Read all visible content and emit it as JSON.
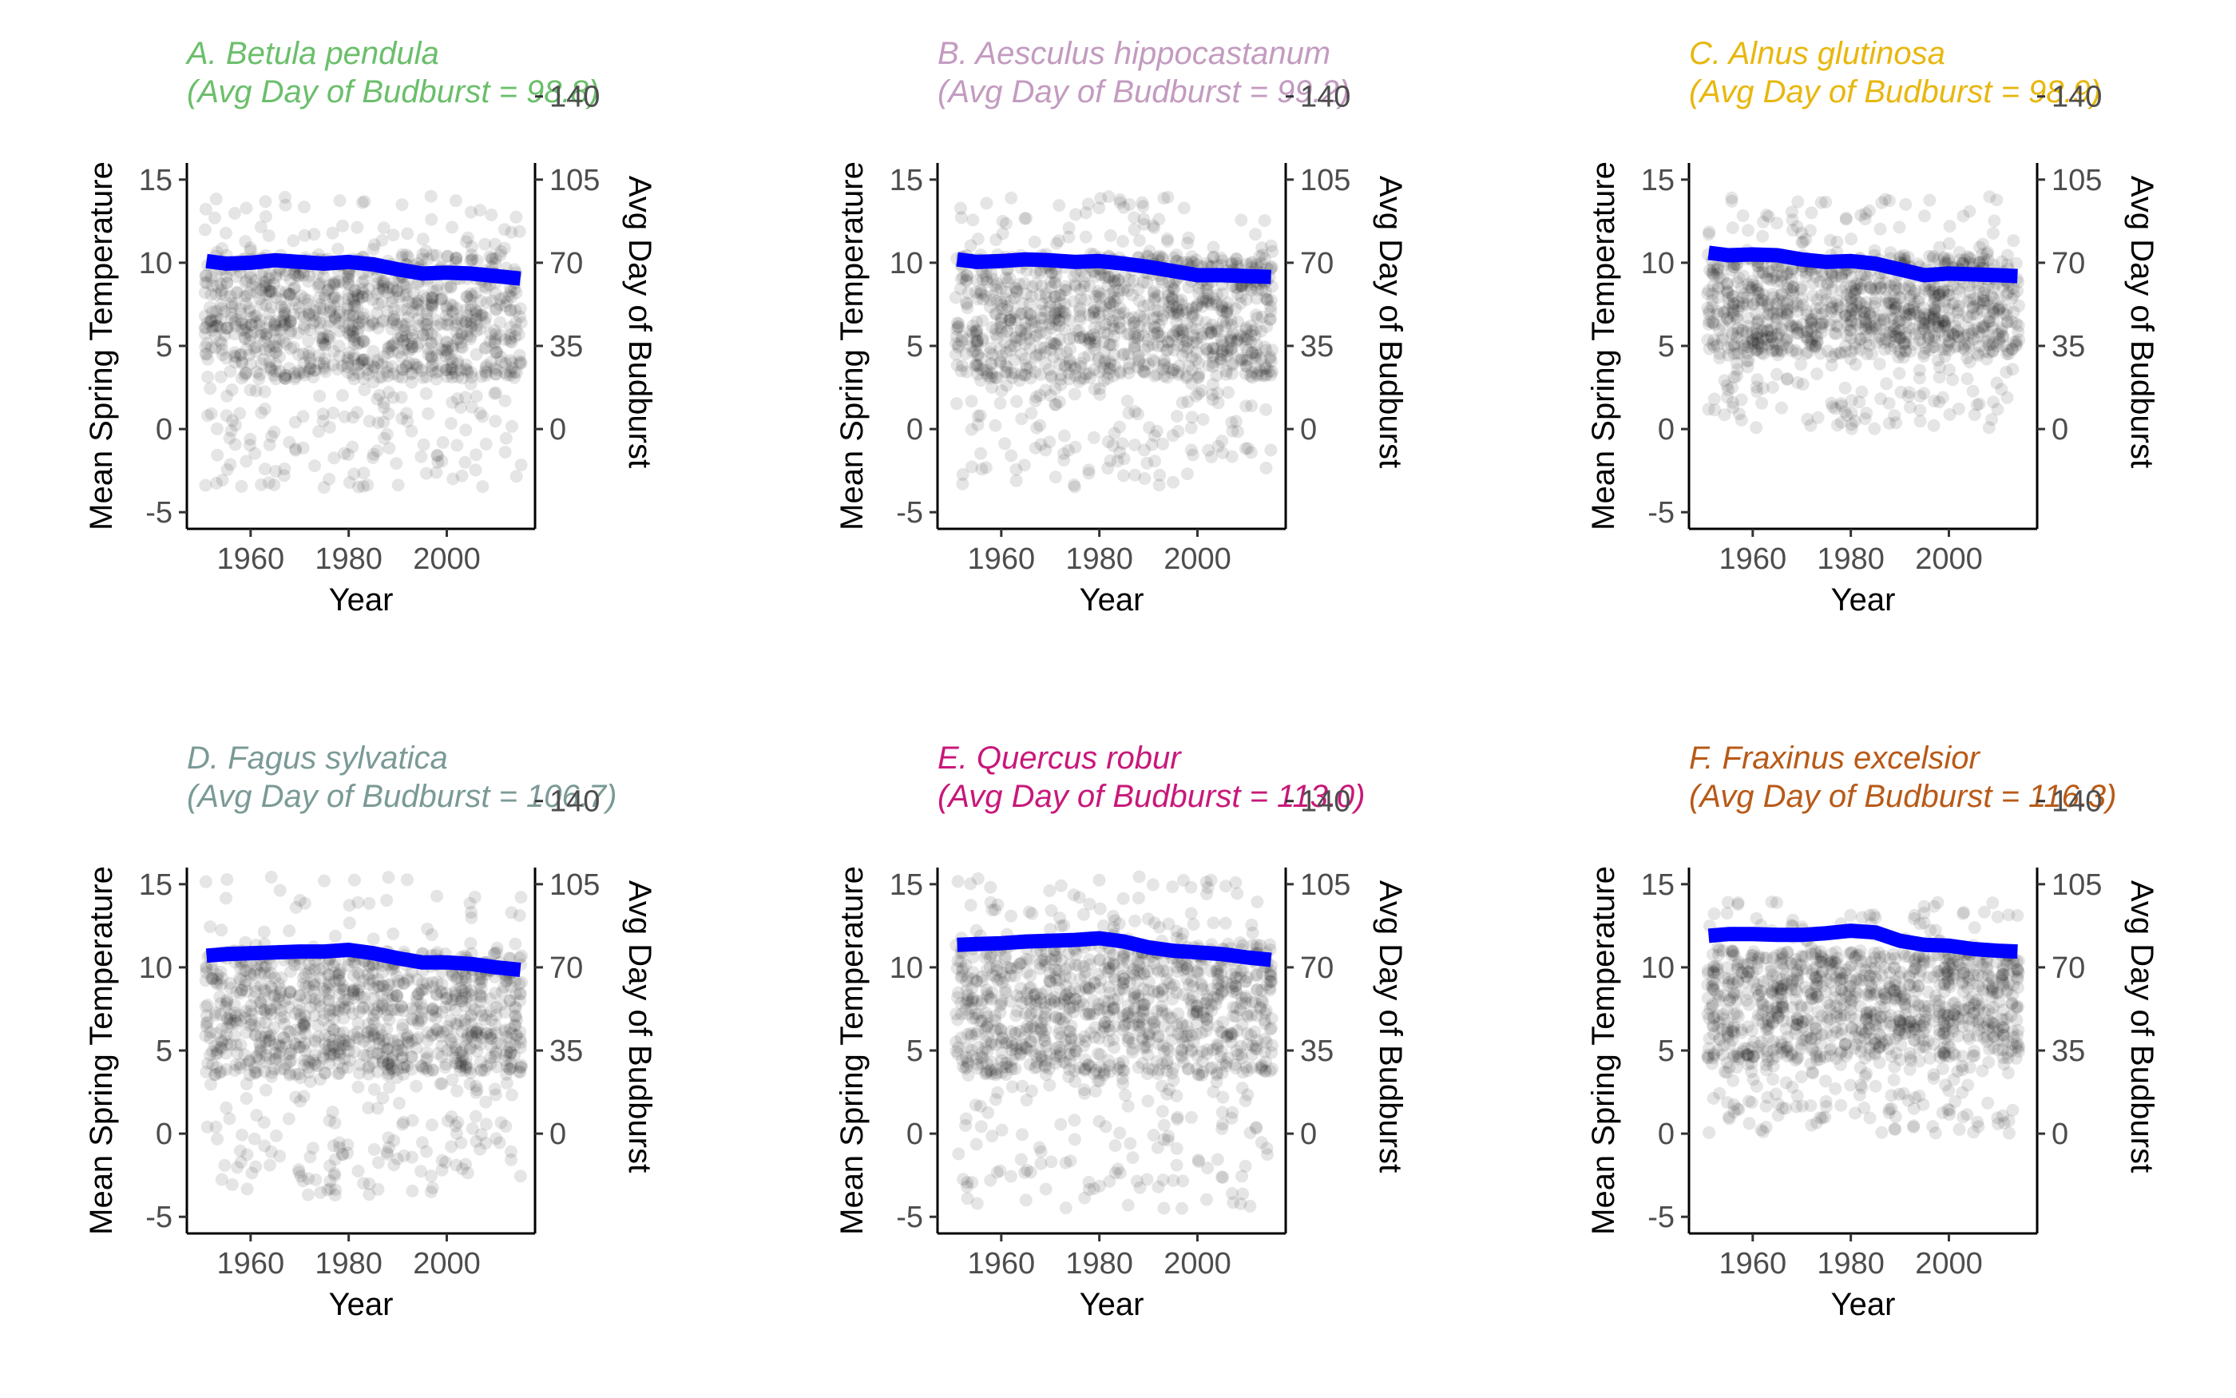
{
  "chart_data": [
    {
      "type": "scatter",
      "title": "A. Betula pendula",
      "subtitle": "(Avg Day of Budburst = 98.8)",
      "title_color": "#6bbf6b",
      "xlabel": "Year",
      "ylabel": "Mean Spring Temperature",
      "y2label": "Avg Day of Budburst",
      "xlim": [
        1947,
        2018
      ],
      "ylim": [
        -6,
        16
      ],
      "y2lim": [
        -6,
        16
      ],
      "xticks": [
        1960,
        1980,
        2000
      ],
      "yticks": [
        -5,
        0,
        5,
        10,
        15
      ],
      "yticklabels": [
        "-5",
        "0",
        "5",
        "10",
        "15"
      ],
      "y2ticks": [
        0,
        5,
        10,
        15,
        20
      ],
      "y2ticklabels": [
        "0",
        "35",
        "70",
        "105",
        "140"
      ],
      "points": {
        "color": "#000000",
        "alpha": 0.1,
        "year_range": [
          1951,
          2015
        ],
        "core": [
          3.0,
          10.5
        ],
        "low": -4.2,
        "high": 14.0
      },
      "series": [
        {
          "color": "#0000ff",
          "x": [
            1951,
            1955,
            1960,
            1965,
            1970,
            1975,
            1980,
            1985,
            1990,
            1995,
            2000,
            2005,
            2010,
            2015
          ],
          "y": [
            10.1,
            9.95,
            10.0,
            10.15,
            10.05,
            9.95,
            10.05,
            9.9,
            9.6,
            9.35,
            9.4,
            9.35,
            9.2,
            9.05
          ]
        }
      ]
    },
    {
      "type": "scatter",
      "title": "B. Aesculus hippocastanum",
      "subtitle": "(Avg Day of Budburst = 99.2)",
      "title_color": "#c39bc0",
      "xlabel": "Year",
      "ylabel": "Mean Spring Temperature",
      "y2label": "Avg Day of Budburst",
      "xlim": [
        1947,
        2018
      ],
      "ylim": [
        -6,
        16
      ],
      "y2lim": [
        -6,
        16
      ],
      "xticks": [
        1960,
        1980,
        2000
      ],
      "yticks": [
        -5,
        0,
        5,
        10,
        15
      ],
      "yticklabels": [
        "-5",
        "0",
        "5",
        "10",
        "15"
      ],
      "y2ticks": [
        0,
        5,
        10,
        15,
        20
      ],
      "y2ticklabels": [
        "0",
        "35",
        "70",
        "105",
        "140"
      ],
      "points": {
        "color": "#000000",
        "alpha": 0.1,
        "year_range": [
          1951,
          2015
        ],
        "core": [
          3.0,
          10.5
        ],
        "low": -4.0,
        "high": 14.0
      },
      "series": [
        {
          "color": "#0000ff",
          "x": [
            1951,
            1955,
            1960,
            1965,
            1970,
            1975,
            1980,
            1985,
            1990,
            1995,
            2000,
            2005,
            2010,
            2015
          ],
          "y": [
            10.2,
            10.05,
            10.1,
            10.2,
            10.15,
            10.05,
            10.1,
            9.95,
            9.75,
            9.5,
            9.25,
            9.25,
            9.2,
            9.15
          ]
        }
      ]
    },
    {
      "type": "scatter",
      "title": "C. Alnus glutinosa",
      "subtitle": "(Avg Day of Budburst = 98.9)",
      "title_color": "#e8b70f",
      "xlabel": "Year",
      "ylabel": "Mean Spring Temperature",
      "y2label": "Avg Day of Budburst",
      "xlim": [
        1947,
        2018
      ],
      "ylim": [
        -6,
        16
      ],
      "y2lim": [
        -6,
        16
      ],
      "xticks": [
        1960,
        1980,
        2000
      ],
      "yticks": [
        -5,
        0,
        5,
        10,
        15
      ],
      "yticklabels": [
        "-5",
        "0",
        "5",
        "10",
        "15"
      ],
      "y2ticks": [
        0,
        5,
        10,
        15,
        20
      ],
      "y2ticklabels": [
        "0",
        "35",
        "70",
        "105",
        "140"
      ],
      "points": {
        "color": "#000000",
        "alpha": 0.1,
        "year_range": [
          1951,
          2014
        ],
        "core": [
          4.5,
          10.5
        ],
        "low": -0.5,
        "high": 14.0
      },
      "series": [
        {
          "color": "#0000ff",
          "x": [
            1951,
            1955,
            1960,
            1965,
            1970,
            1975,
            1980,
            1985,
            1990,
            1995,
            2000,
            2005,
            2010,
            2014
          ],
          "y": [
            10.6,
            10.45,
            10.5,
            10.45,
            10.2,
            10.05,
            10.1,
            9.95,
            9.6,
            9.25,
            9.35,
            9.3,
            9.25,
            9.2
          ]
        }
      ]
    },
    {
      "type": "scatter",
      "title": "D. Fagus sylvatica",
      "subtitle": "(Avg Day of Budburst = 106.7)",
      "title_color": "#7a9a96",
      "xlabel": "Year",
      "ylabel": "Mean Spring Temperature",
      "y2label": "Avg Day of Budburst",
      "xlim": [
        1947,
        2018
      ],
      "ylim": [
        -6,
        16
      ],
      "y2lim": [
        -6,
        16
      ],
      "xticks": [
        1960,
        1980,
        2000
      ],
      "yticks": [
        -5,
        0,
        5,
        10,
        15
      ],
      "yticklabels": [
        "-5",
        "0",
        "5",
        "10",
        "15"
      ],
      "y2ticks": [
        0,
        5,
        10,
        15,
        20
      ],
      "y2ticklabels": [
        "0",
        "35",
        "70",
        "105",
        "140"
      ],
      "points": {
        "color": "#000000",
        "alpha": 0.1,
        "year_range": [
          1951,
          2015
        ],
        "core": [
          3.5,
          11.0
        ],
        "low": -4.2,
        "high": 15.5
      },
      "series": [
        {
          "color": "#0000ff",
          "x": [
            1951,
            1955,
            1960,
            1965,
            1970,
            1975,
            1980,
            1985,
            1990,
            1995,
            2000,
            2005,
            2010,
            2015
          ],
          "y": [
            10.7,
            10.8,
            10.85,
            10.9,
            10.95,
            10.95,
            11.05,
            10.85,
            10.55,
            10.3,
            10.3,
            10.2,
            10.0,
            9.85
          ]
        }
      ]
    },
    {
      "type": "scatter",
      "title": "E. Quercus robur",
      "subtitle": "(Avg Day of Budburst = 113.0)",
      "title_color": "#c8187a",
      "xlabel": "Year",
      "ylabel": "Mean Spring Temperature",
      "y2label": "Avg Day of Budburst",
      "xlim": [
        1947,
        2018
      ],
      "ylim": [
        -6,
        16
      ],
      "y2lim": [
        -6,
        16
      ],
      "xticks": [
        1960,
        1980,
        2000
      ],
      "yticks": [
        -5,
        0,
        5,
        10,
        15
      ],
      "yticklabels": [
        "-5",
        "0",
        "5",
        "10",
        "15"
      ],
      "y2ticks": [
        0,
        5,
        10,
        15,
        20
      ],
      "y2ticklabels": [
        "0",
        "35",
        "70",
        "105",
        "140"
      ],
      "points": {
        "color": "#000000",
        "alpha": 0.1,
        "year_range": [
          1951,
          2015
        ],
        "core": [
          3.5,
          11.5
        ],
        "low": -5.0,
        "high": 15.5
      },
      "series": [
        {
          "color": "#0000ff",
          "x": [
            1951,
            1955,
            1960,
            1965,
            1970,
            1975,
            1980,
            1985,
            1990,
            1995,
            2000,
            2005,
            2010,
            2015
          ],
          "y": [
            11.35,
            11.4,
            11.45,
            11.55,
            11.6,
            11.65,
            11.75,
            11.55,
            11.2,
            11.0,
            10.9,
            10.8,
            10.6,
            10.45
          ]
        }
      ]
    },
    {
      "type": "scatter",
      "title": "F. Fraxinus excelsior",
      "subtitle": "(Avg Day of Budburst = 116.3)",
      "title_color": "#b85a18",
      "xlabel": "Year",
      "ylabel": "Mean Spring Temperature",
      "y2label": "Avg Day of Budburst",
      "xlim": [
        1947,
        2018
      ],
      "ylim": [
        -6,
        16
      ],
      "y2lim": [
        -6,
        16
      ],
      "xticks": [
        1960,
        1980,
        2000
      ],
      "yticks": [
        -5,
        0,
        5,
        10,
        15
      ],
      "yticklabels": [
        "-5",
        "0",
        "5",
        "10",
        "15"
      ],
      "y2ticks": [
        0,
        5,
        10,
        15,
        20
      ],
      "y2ticklabels": [
        "0",
        "35",
        "70",
        "105",
        "140"
      ],
      "points": {
        "color": "#000000",
        "alpha": 0.1,
        "year_range": [
          1951,
          2014
        ],
        "core": [
          4.5,
          11.0
        ],
        "low": -0.5,
        "high": 14.0
      },
      "series": [
        {
          "color": "#0000ff",
          "x": [
            1951,
            1955,
            1960,
            1965,
            1970,
            1975,
            1980,
            1985,
            1990,
            1995,
            2000,
            2005,
            2010,
            2014
          ],
          "y": [
            11.9,
            12.0,
            12.0,
            11.95,
            11.95,
            12.05,
            12.2,
            12.1,
            11.6,
            11.35,
            11.3,
            11.1,
            11.0,
            10.95
          ]
        }
      ]
    }
  ]
}
